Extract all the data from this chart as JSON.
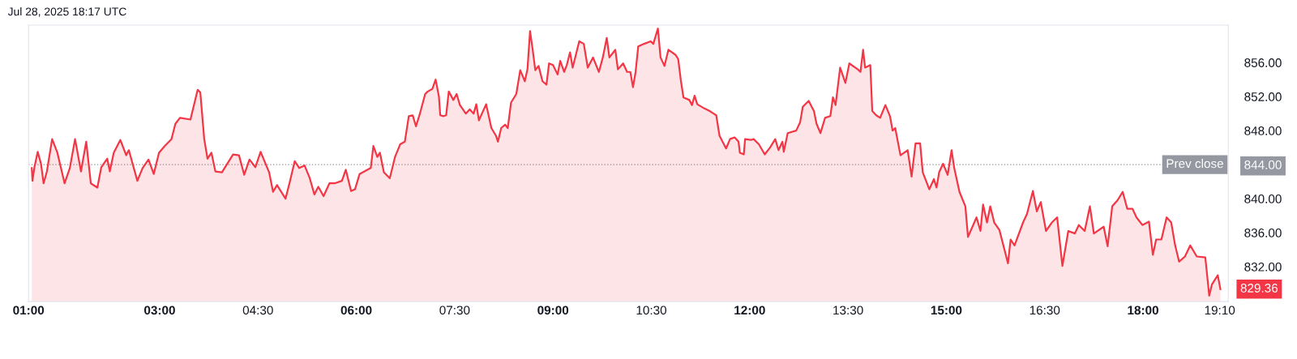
{
  "chart_data": {
    "type": "area",
    "annotations": [
      "Jul 28, 2025 18:17 UTC",
      "829.36"
    ],
    "xlim": [
      1.0,
      19.3
    ],
    "ylim": [
      827.9,
      860.4
    ],
    "xticks": [
      {
        "value": 1,
        "label": "01:00"
      },
      {
        "value": 3,
        "label": "03:00"
      },
      {
        "value": 4.5,
        "label": "04:30"
      },
      {
        "value": 6,
        "label": "06:00"
      },
      {
        "value": 7.5,
        "label": "07:30"
      },
      {
        "value": 9,
        "label": "09:00"
      },
      {
        "value": 10.5,
        "label": "10:30"
      },
      {
        "value": 12,
        "label": "12:00"
      },
      {
        "value": 13.5,
        "label": "13:30"
      },
      {
        "value": 15,
        "label": "15:00"
      },
      {
        "value": 16.5,
        "label": "16:30"
      },
      {
        "value": 18,
        "label": "18:00"
      },
      {
        "value": 19.17,
        "label": "19:10"
      }
    ],
    "yticks": [
      {
        "value": 832,
        "label": "832.00"
      },
      {
        "value": 836,
        "label": "836.00"
      },
      {
        "value": 840,
        "label": "840.00"
      },
      {
        "value": 844,
        "label": "844.00"
      },
      {
        "value": 848,
        "label": "848.00"
      },
      {
        "value": 852,
        "label": "852.00"
      },
      {
        "value": 856,
        "label": "856.00"
      }
    ],
    "grid": false,
    "ref_lines": [
      {
        "axis": "y",
        "value": 844,
        "label": "Prev close",
        "color": "#9598a1",
        "line_style": "dotted"
      }
    ],
    "series": [
      {
        "color": "#f23645",
        "x": [
          1.05,
          1.06,
          1.09,
          1.14,
          1.19,
          1.23,
          1.28,
          1.36,
          1.44,
          1.55,
          1.63,
          1.71,
          1.8,
          1.88,
          1.95,
          2.05,
          2.11,
          2.2,
          2.24,
          2.3,
          2.4,
          2.49,
          2.53,
          2.66,
          2.74,
          2.83,
          2.91,
          2.99,
          3.08,
          3.18,
          3.24,
          3.31,
          3.47,
          3.58,
          3.62,
          3.68,
          3.73,
          3.79,
          3.85,
          3.95,
          4.12,
          4.21,
          4.29,
          4.37,
          4.46,
          4.54,
          4.67,
          4.73,
          4.79,
          4.92,
          4.98,
          5.06,
          5.13,
          5.21,
          5.29,
          5.36,
          5.42,
          5.5,
          5.59,
          5.67,
          5.78,
          5.84,
          5.92,
          5.98,
          6.05,
          6.22,
          6.26,
          6.32,
          6.36,
          6.42,
          6.51,
          6.59,
          6.67,
          6.74,
          6.8,
          6.86,
          6.91,
          6.97,
          7.05,
          7.09,
          7.16,
          7.21,
          7.26,
          7.28,
          7.33,
          7.37,
          7.41,
          7.48,
          7.53,
          7.58,
          7.67,
          7.73,
          7.79,
          7.83,
          7.87,
          7.98,
          8.06,
          8.13,
          8.16,
          8.21,
          8.27,
          8.31,
          8.36,
          8.44,
          8.5,
          8.57,
          8.61,
          8.65,
          8.69,
          8.73,
          8.78,
          8.84,
          8.9,
          8.94,
          9.0,
          9.07,
          9.11,
          9.17,
          9.21,
          9.26,
          9.3,
          9.4,
          9.47,
          9.53,
          9.61,
          9.7,
          9.76,
          9.82,
          9.86,
          9.95,
          9.99,
          10.07,
          10.13,
          10.18,
          10.22,
          10.26,
          10.3,
          10.39,
          10.49,
          10.53,
          10.6,
          10.64,
          10.7,
          10.76,
          10.87,
          10.91,
          10.95,
          10.99,
          11.08,
          11.12,
          11.16,
          11.2,
          11.31,
          11.39,
          11.43,
          11.49,
          11.54,
          11.64,
          11.7,
          11.77,
          11.83,
          11.85,
          11.91,
          11.93,
          12.02,
          12.06,
          12.14,
          12.23,
          12.31,
          12.39,
          12.44,
          12.5,
          12.52,
          12.58,
          12.71,
          12.77,
          12.81,
          12.9,
          12.98,
          13.02,
          13.08,
          13.15,
          13.23,
          13.27,
          13.31,
          13.38,
          13.46,
          13.52,
          13.65,
          13.69,
          13.73,
          13.76,
          13.84,
          13.87,
          13.93,
          13.99,
          14.07,
          14.14,
          14.18,
          14.22,
          14.3,
          14.41,
          14.47,
          14.53,
          14.6,
          14.64,
          14.74,
          14.81,
          14.85,
          14.89,
          14.95,
          15.02,
          15.08,
          15.12,
          15.2,
          15.29,
          15.33,
          15.46,
          15.52,
          15.56,
          15.62,
          15.67,
          15.73,
          15.81,
          15.94,
          15.98,
          16.04,
          16.17,
          16.23,
          16.32,
          16.38,
          16.44,
          16.52,
          16.61,
          16.69,
          16.77,
          16.86,
          16.96,
          17.02,
          17.11,
          17.19,
          17.25,
          17.4,
          17.46,
          17.53,
          17.61,
          17.69,
          17.76,
          17.84,
          17.9,
          17.99,
          18.09,
          18.15,
          18.2,
          18.28,
          18.36,
          18.43,
          18.49,
          18.55,
          18.64,
          18.72,
          18.82,
          18.95,
          19.01,
          19.05,
          19.14,
          19.18
        ],
        "values": [
          843.6,
          842.1,
          843.7,
          845.5,
          844.1,
          841.8,
          843.2,
          847.0,
          845.4,
          841.8,
          843.6,
          847.0,
          843.2,
          846.7,
          841.8,
          841.3,
          843.7,
          844.7,
          843.2,
          845.4,
          846.9,
          845.1,
          845.7,
          842.1,
          843.6,
          844.6,
          842.9,
          845.4,
          846.2,
          847.0,
          848.8,
          849.5,
          849.3,
          852.8,
          852.5,
          847.0,
          844.7,
          845.4,
          843.2,
          843.1,
          845.2,
          845.1,
          842.8,
          844.6,
          843.7,
          845.5,
          843.1,
          840.8,
          841.6,
          840.0,
          841.8,
          844.4,
          843.6,
          843.9,
          842.4,
          840.5,
          841.4,
          840.3,
          841.8,
          841.8,
          842.1,
          843.4,
          840.9,
          841.1,
          842.9,
          843.6,
          846.2,
          844.9,
          845.4,
          843.1,
          842.4,
          844.9,
          846.4,
          846.7,
          849.7,
          849.8,
          848.5,
          850.0,
          852.3,
          852.6,
          852.9,
          854.0,
          852.0,
          849.8,
          849.7,
          849.8,
          852.6,
          851.6,
          852.3,
          851.0,
          850.0,
          850.5,
          850.0,
          851.1,
          849.2,
          851.1,
          848.3,
          847.4,
          846.7,
          848.3,
          848.7,
          848.3,
          851.3,
          852.3,
          855.1,
          853.8,
          855.2,
          859.7,
          857.5,
          855.1,
          855.6,
          853.8,
          853.4,
          855.9,
          855.7,
          854.6,
          856.2,
          854.9,
          855.7,
          857.2,
          855.4,
          858.5,
          858.2,
          855.4,
          856.6,
          854.9,
          856.6,
          858.9,
          856.6,
          857.5,
          855.2,
          855.9,
          854.9,
          854.9,
          853.1,
          854.9,
          857.9,
          858.2,
          858.5,
          858.2,
          860.0,
          856.6,
          855.6,
          857.5,
          856.9,
          856.4,
          853.9,
          851.9,
          851.6,
          851.0,
          852.1,
          851.1,
          850.6,
          850.3,
          850.1,
          849.8,
          847.4,
          845.9,
          847.0,
          847.2,
          846.7,
          845.4,
          845.2,
          847.0,
          846.9,
          847.0,
          846.4,
          845.2,
          846.0,
          847.0,
          845.7,
          846.7,
          845.5,
          847.7,
          848.0,
          849.0,
          850.8,
          851.5,
          850.3,
          848.8,
          847.7,
          849.5,
          849.7,
          851.9,
          851.0,
          855.4,
          853.6,
          855.9,
          855.2,
          854.9,
          857.5,
          855.4,
          855.7,
          850.3,
          849.8,
          849.5,
          851.0,
          849.7,
          848.0,
          848.3,
          845.1,
          845.7,
          842.6,
          846.5,
          846.5,
          843.1,
          841.1,
          842.3,
          841.3,
          843.1,
          844.1,
          842.8,
          845.7,
          843.6,
          840.8,
          839.1,
          835.5,
          837.8,
          836.2,
          839.3,
          837.2,
          839.1,
          837.2,
          836.3,
          832.4,
          835.2,
          834.5,
          837.2,
          838.2,
          840.9,
          838.5,
          839.6,
          836.2,
          837.2,
          837.8,
          832.1,
          836.2,
          835.9,
          836.9,
          836.2,
          839.1,
          835.9,
          836.7,
          834.4,
          839.1,
          839.8,
          840.8,
          838.8,
          838.8,
          837.8,
          836.9,
          837.3,
          833.4,
          835.2,
          835.2,
          837.8,
          837.2,
          834.5,
          832.6,
          833.2,
          834.5,
          833.2,
          833.1,
          828.6,
          829.9,
          831.0,
          829.36
        ]
      }
    ]
  }
}
